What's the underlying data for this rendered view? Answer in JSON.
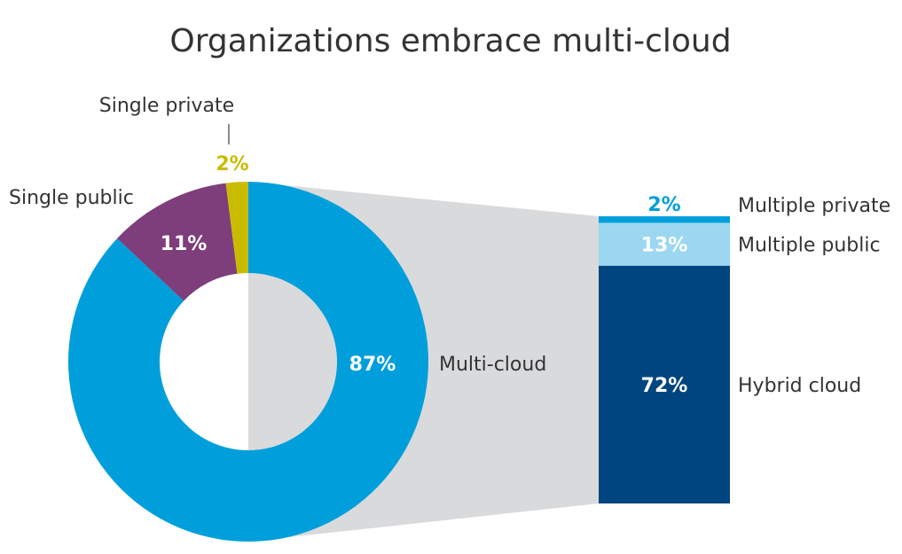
{
  "chart_data": {
    "type": "pie",
    "title": "Organizations embrace multi-cloud",
    "donut": {
      "slices": [
        {
          "label": "Multi-cloud",
          "value": 87,
          "value_label": "87%",
          "color": "#009FDB"
        },
        {
          "label": "Single public",
          "value": 11,
          "value_label": "11%",
          "color": "#7E3E7C"
        },
        {
          "label": "Single private",
          "value": 2,
          "value_label": "2%",
          "color": "#C9BC00"
        }
      ]
    },
    "breakdown_bar": {
      "of": "Multi-cloud",
      "segments": [
        {
          "label": "Multiple private",
          "value": 2,
          "value_label": "2%",
          "color": "#009FDB"
        },
        {
          "label": "Multiple public",
          "value": 13,
          "value_label": "13%",
          "color": "#9BD7F1"
        },
        {
          "label": "Hybrid cloud",
          "value": 72,
          "value_label": "72%",
          "color": "#00457F"
        }
      ]
    },
    "connector_color": "#D9DADC",
    "text_color": "#333333"
  }
}
